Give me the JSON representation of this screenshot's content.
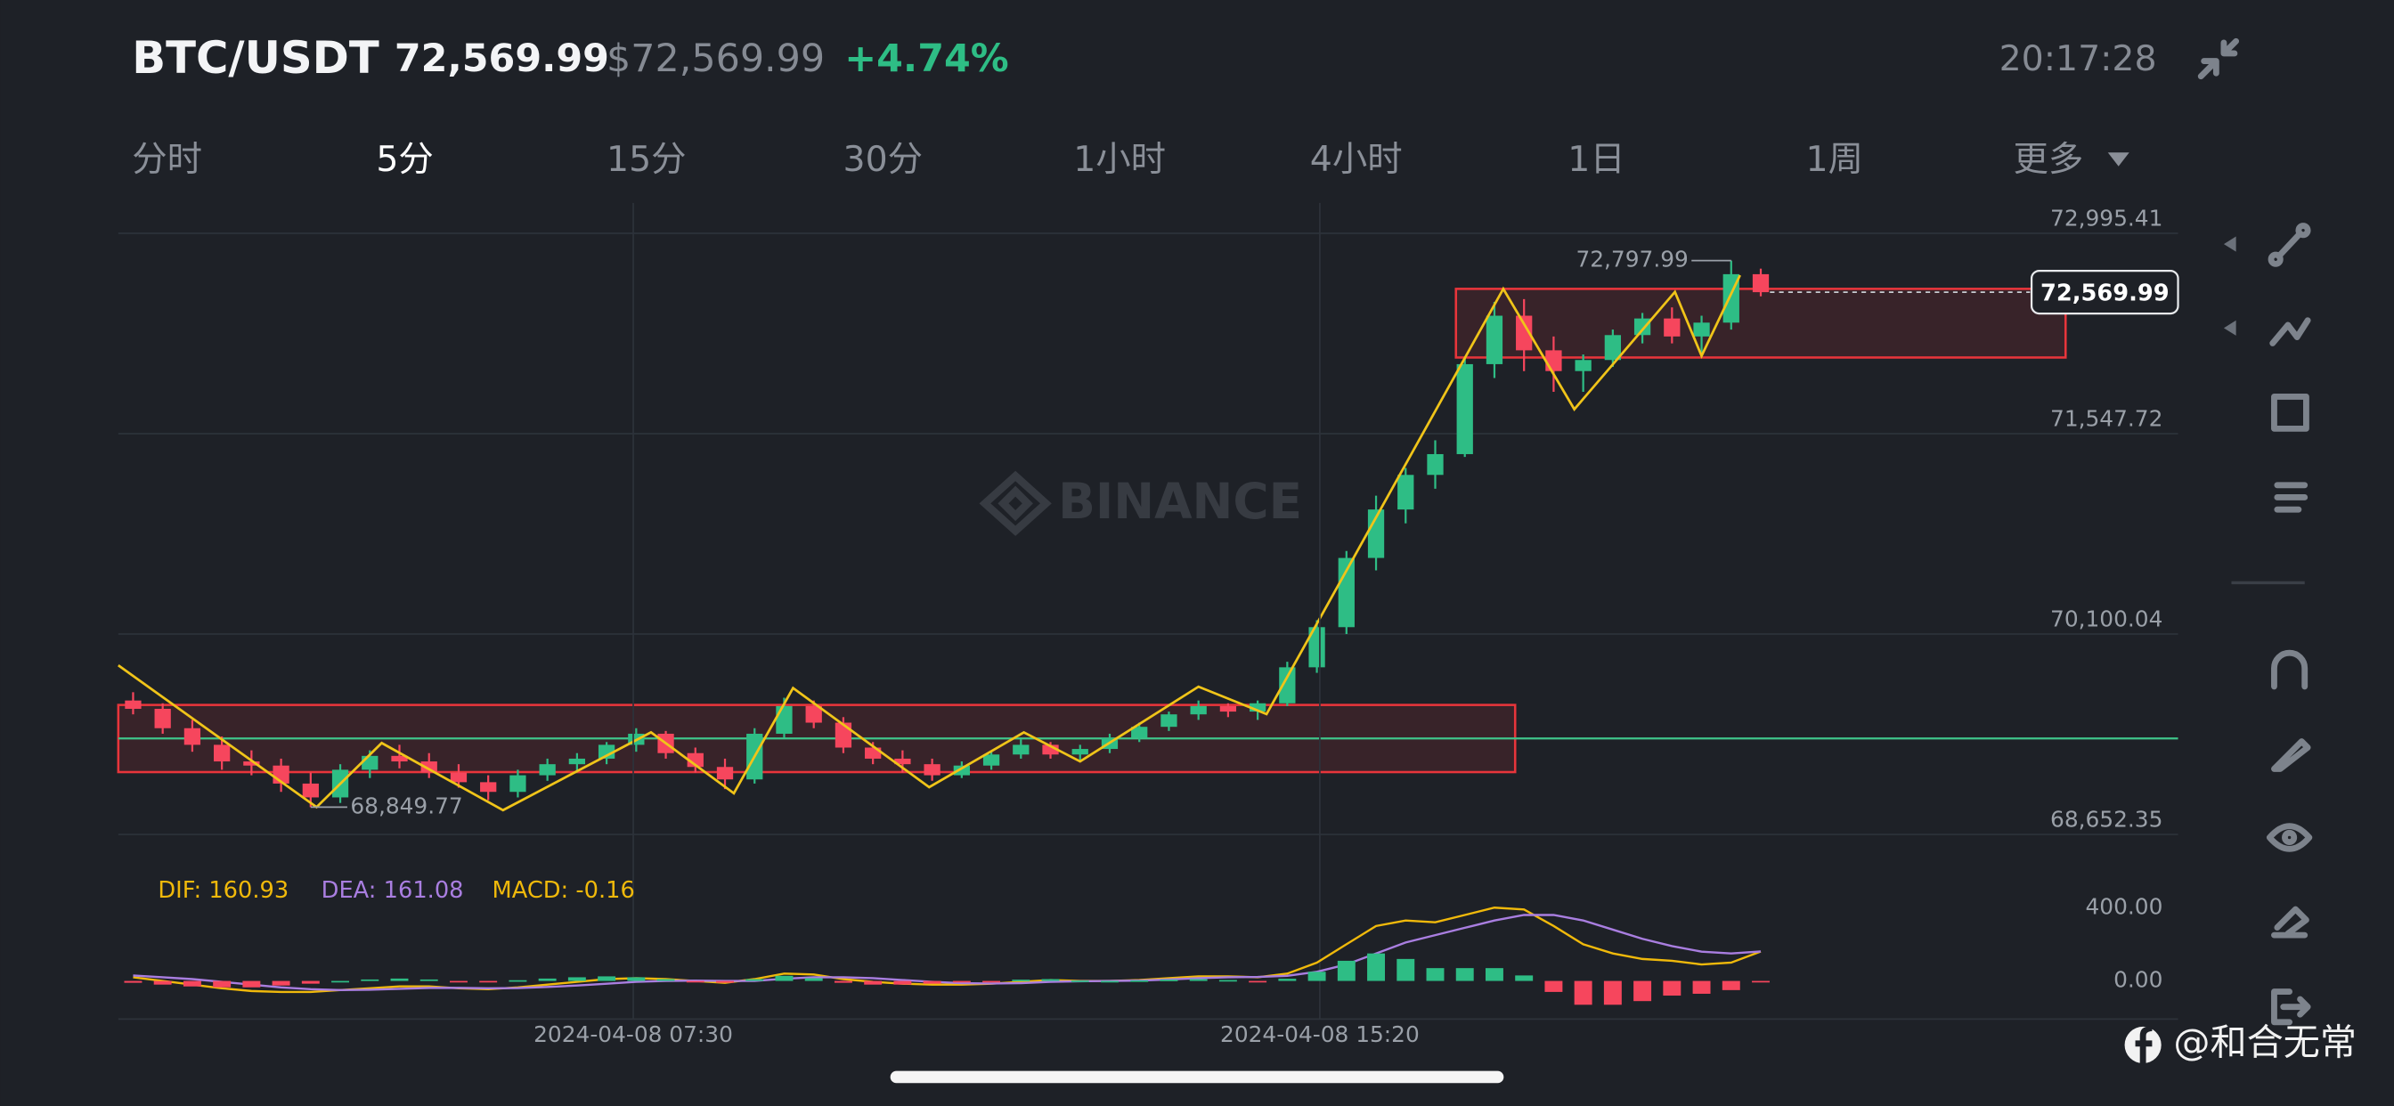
{
  "header": {
    "pair": "BTC/USDT",
    "price": "72,569.99",
    "usd_price": "$72,569.99",
    "change": "+4.74%",
    "time": "20:17:28"
  },
  "tabs": [
    "分时",
    "5分",
    "15分",
    "30分",
    "1小时",
    "4小时",
    "1日",
    "1周",
    "更多"
  ],
  "watermark": "BINANCE",
  "credit": "@和合无常",
  "chart_data": [
    {
      "type": "candlestick",
      "x": [
        0,
        1,
        2,
        3,
        4,
        5,
        6,
        7,
        8,
        9,
        10,
        11,
        12,
        13,
        14,
        15,
        16,
        17,
        18,
        19,
        20,
        21,
        22,
        23,
        24,
        25,
        26,
        27,
        28,
        29,
        30,
        31,
        32,
        33,
        34,
        35,
        36,
        37,
        38,
        39,
        40,
        41,
        42,
        43,
        44,
        45,
        46,
        47,
        48,
        49,
        50,
        51,
        52,
        53,
        54,
        55
      ],
      "open": [
        69620,
        69560,
        69420,
        69300,
        69180,
        69150,
        69020,
        68920,
        69120,
        69220,
        69180,
        69100,
        69030,
        68960,
        69080,
        69160,
        69200,
        69300,
        69380,
        69240,
        69140,
        69050,
        69380,
        69580,
        69460,
        69280,
        69200,
        69160,
        69080,
        69150,
        69230,
        69300,
        69230,
        69270,
        69350,
        69430,
        69520,
        69580,
        69540,
        69600,
        69860,
        70150,
        70650,
        71000,
        71250,
        71400,
        72050,
        72400,
        72150,
        72000,
        72080,
        72260,
        72380,
        72250,
        72350,
        72700
      ],
      "high": [
        69680,
        69600,
        69480,
        69360,
        69260,
        69200,
        69100,
        69160,
        69260,
        69300,
        69240,
        69160,
        69080,
        69120,
        69200,
        69240,
        69320,
        69420,
        69400,
        69280,
        69200,
        69420,
        69640,
        69620,
        69500,
        69320,
        69260,
        69200,
        69180,
        69260,
        69340,
        69320,
        69300,
        69380,
        69460,
        69540,
        69620,
        69600,
        69620,
        69900,
        70200,
        70700,
        71100,
        71300,
        71500,
        72100,
        72500,
        72520,
        72250,
        72120,
        72300,
        72420,
        72460,
        72400,
        72797.99,
        72740
      ],
      "low": [
        69520,
        69380,
        69250,
        69120,
        69080,
        68960,
        68849.77,
        68880,
        69060,
        69130,
        69060,
        68990,
        68900,
        68920,
        69040,
        69100,
        69160,
        69250,
        69200,
        69100,
        68980,
        69020,
        69350,
        69420,
        69240,
        69160,
        69100,
        69040,
        69060,
        69120,
        69200,
        69200,
        69180,
        69240,
        69320,
        69400,
        69480,
        69500,
        69480,
        69580,
        69820,
        70100,
        70560,
        70900,
        71150,
        71380,
        71950,
        72000,
        71850,
        71850,
        72030,
        72200,
        72200,
        72100,
        72300,
        72540
      ],
      "close": [
        69560,
        69420,
        69300,
        69180,
        69150,
        69020,
        68920,
        69120,
        69220,
        69180,
        69100,
        69030,
        68960,
        69080,
        69160,
        69200,
        69300,
        69380,
        69240,
        69140,
        69050,
        69380,
        69580,
        69460,
        69280,
        69200,
        69160,
        69080,
        69150,
        69230,
        69300,
        69230,
        69270,
        69350,
        69430,
        69520,
        69580,
        69540,
        69600,
        69860,
        70150,
        70650,
        71000,
        71250,
        71400,
        72050,
        72400,
        72150,
        72000,
        72080,
        72260,
        72380,
        72250,
        72350,
        72700,
        72569.99
      ],
      "up_color": "#2ebd85",
      "down_color": "#f6465d",
      "xlim": [
        -0.5,
        69.1
      ],
      "ylim": [
        68454,
        73215
      ],
      "yticks": [
        {
          "value": 72995.41,
          "label": "72,995.41"
        },
        {
          "value": 71547.72,
          "label": "71,547.72"
        },
        {
          "value": 70100.04,
          "label": "70,100.04"
        },
        {
          "value": 68652.35,
          "label": "68,652.35"
        }
      ],
      "grid": true,
      "zones": [
        {
          "x": [
            -0.5,
            46.7
          ],
          "y": [
            69103,
            69588
          ]
        },
        {
          "x": [
            44.7,
            65.3
          ],
          "y": [
            72098,
            72594
          ]
        }
      ],
      "zone_color": "#e8353b",
      "level": 69346,
      "level_color": "#3fc58a",
      "zigzag": {
        "color": "#f0c419",
        "x": [
          -0.5,
          6.2,
          8.4,
          12.5,
          17.5,
          20.3,
          22.3,
          26.9,
          30.1,
          32.0,
          36.0,
          38.3,
          46.3,
          48.7,
          52.1,
          53.0,
          54.3
        ],
        "y": [
          69874,
          68850,
          69313,
          68828,
          69390,
          68950,
          69710,
          68994,
          69390,
          69180,
          69720,
          69522,
          72594,
          71724,
          72572,
          72110,
          72693
        ]
      },
      "high_label": {
        "x": 54,
        "value": 72797.99,
        "label": "72,797.99"
      },
      "low_label": {
        "x": 6,
        "value": 68849.77,
        "label": "68,849.77"
      },
      "last_price": {
        "value": 72569.99,
        "label": "72,569.99"
      }
    },
    {
      "type": "macd",
      "x": [
        0,
        1,
        2,
        3,
        4,
        5,
        6,
        7,
        8,
        9,
        10,
        11,
        12,
        13,
        14,
        15,
        16,
        17,
        18,
        19,
        20,
        21,
        22,
        23,
        24,
        25,
        26,
        27,
        28,
        29,
        30,
        31,
        32,
        33,
        34,
        35,
        36,
        37,
        38,
        39,
        40,
        41,
        42,
        43,
        44,
        45,
        46,
        47,
        48,
        49,
        50,
        51,
        52,
        53,
        54,
        55
      ],
      "xlim": [
        -0.5,
        69.1
      ],
      "ylim": [
        -208,
        608
      ],
      "yticks": [
        {
          "value": 400,
          "label": "400.00"
        },
        {
          "value": 0,
          "label": "0.00"
        }
      ],
      "xticks": [
        {
          "value": 16.9,
          "label": "2024-04-08 07:30"
        },
        {
          "value": 40.1,
          "label": "2024-04-08 15:20"
        }
      ],
      "series": [
        {
          "name": "DIF: 160.93",
          "color": "#f0b90b",
          "values": [
            20,
            0,
            -20,
            -40,
            -55,
            -60,
            -60,
            -50,
            -40,
            -30,
            -30,
            -40,
            -45,
            -35,
            -20,
            -5,
            10,
            15,
            10,
            0,
            -10,
            10,
            40,
            35,
            10,
            -5,
            -15,
            -20,
            -20,
            -15,
            -5,
            5,
            0,
            0,
            5,
            15,
            25,
            25,
            20,
            40,
            100,
            200,
            300,
            330,
            320,
            360,
            400,
            390,
            300,
            200,
            150,
            120,
            110,
            90,
            100,
            160.93
          ]
        },
        {
          "name": "DEA: 161.08",
          "color": "#a97ee0",
          "values": [
            30,
            20,
            10,
            -5,
            -20,
            -35,
            -45,
            -50,
            -48,
            -43,
            -38,
            -38,
            -40,
            -39,
            -33,
            -25,
            -15,
            -5,
            0,
            2,
            0,
            0,
            12,
            20,
            20,
            15,
            5,
            -5,
            -12,
            -14,
            -12,
            -5,
            -2,
            0,
            2,
            8,
            15,
            20,
            22,
            28,
            50,
            90,
            150,
            210,
            250,
            290,
            330,
            360,
            360,
            330,
            280,
            230,
            190,
            160,
            150,
            161.08
          ]
        },
        {
          "name": "MACD: -0.16",
          "color": "#f0b90b",
          "type": "histogram",
          "values": [
            -10,
            -20,
            -30,
            -35,
            -35,
            -25,
            -15,
            0,
            8,
            13,
            8,
            -2,
            -5,
            4,
            13,
            20,
            25,
            20,
            10,
            -2,
            -10,
            10,
            28,
            15,
            -10,
            -20,
            -20,
            -15,
            -8,
            -1,
            7,
            10,
            2,
            0,
            3,
            7,
            10,
            5,
            -2,
            12,
            50,
            110,
            150,
            120,
            70,
            70,
            70,
            30,
            -60,
            -130,
            -130,
            -110,
            -80,
            -70,
            -50,
            -0.16
          ]
        }
      ],
      "up_color": "#2ebd85",
      "down_color": "#f6465d"
    }
  ]
}
